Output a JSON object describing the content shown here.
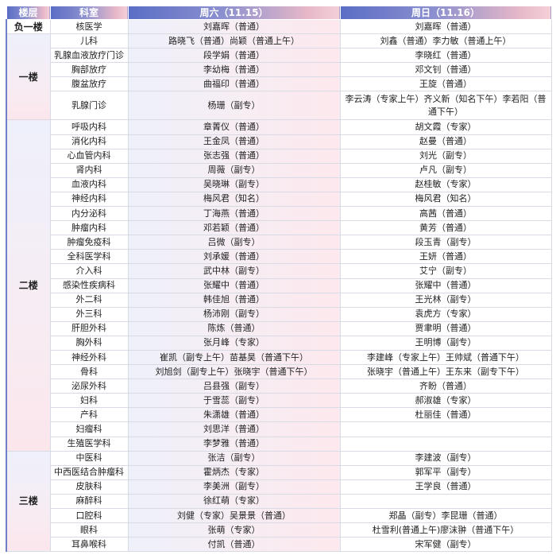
{
  "header": {
    "floor": "楼层",
    "dept": "科室",
    "sat": "周六（11.15）",
    "sun": "周日（11.16）"
  },
  "colors": {
    "header_start": "#5a6dc5",
    "header_end": "#f4d0d8",
    "saturday_tint": "#fce8ed"
  },
  "floors": [
    {
      "name": "负一楼",
      "rows": [
        {
          "dept": "核医学",
          "sat": "刘嘉晖（普通）",
          "sun": "刘嘉晖（普通）"
        }
      ]
    },
    {
      "name": "一楼",
      "rows": [
        {
          "dept": "儿科",
          "sat": "路晓飞（普通）尚颖（普通上午）",
          "sun": "刘鑫（普通）李力敏（普通上午）"
        },
        {
          "dept": "乳腺血液放疗门诊",
          "sat": "段学娟（普通）",
          "sun": "李晓红（普通）"
        },
        {
          "dept": "胸部放疗",
          "sat": "李幼梅（普通）",
          "sun": "邓文钊（普通）"
        },
        {
          "dept": "腹盆放疗",
          "sat": "曲福印（普通）",
          "sun": "王旋（普通）"
        },
        {
          "dept": "乳腺门诊",
          "sat": "杨珊（副专）",
          "sun": "李云涛（专家上午）齐义新（知名下午）李若阳（普通下午）",
          "tall": true
        }
      ]
    },
    {
      "name": "二楼",
      "rows": [
        {
          "dept": "呼吸内科",
          "sat": "章菁仪（普通）",
          "sun": "胡文霞（专家）"
        },
        {
          "dept": "消化内科",
          "sat": "王金凤（普通）",
          "sun": "赵曼（普通）"
        },
        {
          "dept": "心血管内科",
          "sat": "张志强（普通）",
          "sun": "刘光（副专）"
        },
        {
          "dept": "肾内科",
          "sat": "周薇（副专）",
          "sun": "卢凡（副专）"
        },
        {
          "dept": "血液内科",
          "sat": "吴晓琳（副专）",
          "sun": "赵桂敏（专家）"
        },
        {
          "dept": "神经内科",
          "sat": "梅风君（知名）",
          "sun": "梅风君（知名）"
        },
        {
          "dept": "内分泌科",
          "sat": "丁海燕（普通）",
          "sun": "高茜（普通）"
        },
        {
          "dept": "肿瘤内科",
          "sat": "邓若颖（普通）",
          "sun": "黄芳（普通）"
        },
        {
          "dept": "肿瘤免疫科",
          "sat": "吕微（副专）",
          "sun": "段玉青（副专）"
        },
        {
          "dept": "全科医学科",
          "sat": "刘承媛（普通）",
          "sun": "王妍（普通）"
        },
        {
          "dept": "介入科",
          "sat": "武中林（副专）",
          "sun": "艾宁（副专）"
        },
        {
          "dept": "感染性疾病科",
          "sat": "张耀中（普通）",
          "sun": "张耀中（普通）"
        },
        {
          "dept": "外二科",
          "sat": "韩佳旭（普通）",
          "sun": "王光林（副专）"
        },
        {
          "dept": "外三科",
          "sat": "杨沛刚（副专）",
          "sun": "袁虎方（专家）"
        },
        {
          "dept": "肝胆外科",
          "sat": "陈炼（普通）",
          "sun": "贾聿明（普通）"
        },
        {
          "dept": "胸外科",
          "sat": "张月峰（专家）",
          "sun": "王明博（副专）"
        },
        {
          "dept": "神经外科",
          "sat": "崔凯（副专上午）苗基昊（普通下午）",
          "sun": "李建峰（专家上午）王帅斌（普通下午）"
        },
        {
          "dept": "骨科",
          "sat": "刘旭剑（副专上午）张晓宇（普通下午）",
          "sun": "张晓宇（普通上午）王东来（副专下午）"
        },
        {
          "dept": "泌尿外科",
          "sat": "吕县强（副专）",
          "sun": "齐盼（普通）"
        },
        {
          "dept": "妇科",
          "sat": "于雪蕊（副专）",
          "sun": "郝淑雄（专家）"
        },
        {
          "dept": "产科",
          "sat": "朱潇雄（普通）",
          "sun": "杜丽佳（普通）"
        },
        {
          "dept": "妇瘤科",
          "sat": "刘思洋（普通）",
          "sun": ""
        },
        {
          "dept": "生殖医学科",
          "sat": "李梦雅（普通）",
          "sun": ""
        }
      ]
    },
    {
      "name": "三楼",
      "rows": [
        {
          "dept": "中医科",
          "sat": "张洁（副专）",
          "sun": "李建波（副专）"
        },
        {
          "dept": "中西医结合肿瘤科",
          "sat": "霍炳杰（专家）",
          "sun": "郭军平（副专）"
        },
        {
          "dept": "皮肤科",
          "sat": "李美洲（副专）",
          "sun": "王学良（普通）"
        },
        {
          "dept": "麻醉科",
          "sat": "徐红萌（专家）",
          "sun": ""
        },
        {
          "dept": "口腔科",
          "sat": "刘健（专家）吴景景（普通）",
          "sun": "郑晶（副专）李昆珊（普通）"
        },
        {
          "dept": "眼科",
          "sat": "张萌（专家）",
          "sun": "杜雪利(普通上午)廖沫翀（普通下午）"
        },
        {
          "dept": "耳鼻喉科",
          "sat": "付凯（普通）",
          "sun": "宋军健（副专）"
        }
      ]
    }
  ]
}
